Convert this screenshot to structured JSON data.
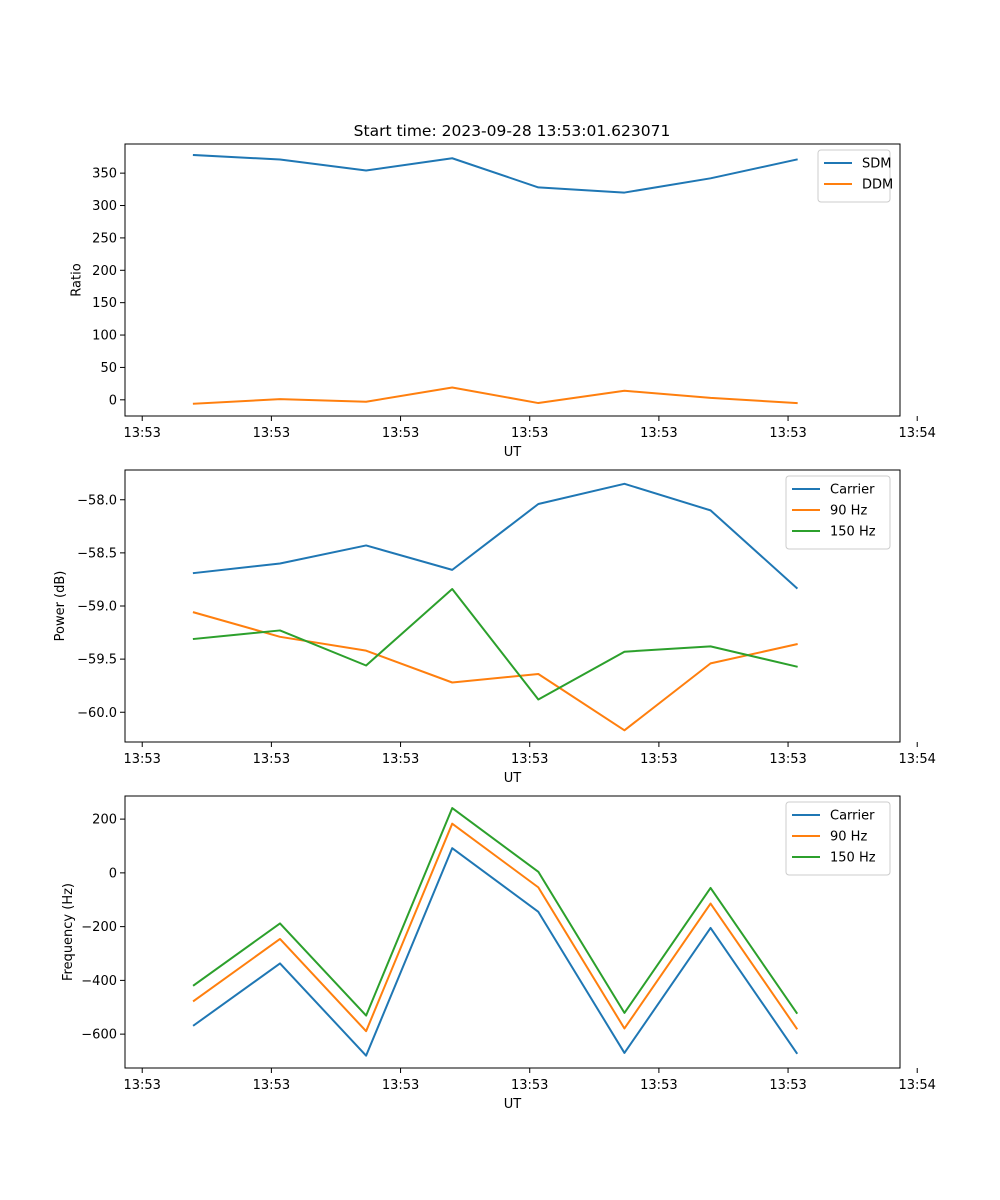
{
  "figure_title": "Start time: 2023-09-28 13:53:01.623071",
  "colors": {
    "blue": "#1f77b4",
    "orange": "#ff7f0e",
    "green": "#2ca02c",
    "axes": "#000000",
    "legend_border": "#cccccc"
  },
  "chart_data": [
    {
      "type": "line",
      "title": "Start time: 2023-09-28 13:53:01.623071",
      "xlabel": "UT",
      "ylabel": "Ratio",
      "x": [
        1,
        2,
        3,
        4,
        5,
        6,
        7,
        8
      ],
      "xlim": [
        0.2,
        9.2
      ],
      "xticks": [
        0.4,
        1.9,
        3.4,
        4.9,
        6.4,
        7.9,
        9.4
      ],
      "xtick_labels": [
        "13:53",
        "13:53",
        "13:53",
        "13:53",
        "13:53",
        "13:53",
        "13:54"
      ],
      "ylim": [
        -25,
        395
      ],
      "yticks": [
        0,
        50,
        100,
        150,
        200,
        250,
        300,
        350
      ],
      "ytick_labels": [
        "0",
        "50",
        "100",
        "150",
        "200",
        "250",
        "300",
        "350"
      ],
      "legend_position": "top-right",
      "series": [
        {
          "name": "SDM",
          "color": "#1f77b4",
          "values": [
            378,
            371,
            354,
            373,
            328,
            320,
            342,
            371
          ]
        },
        {
          "name": "DDM",
          "color": "#ff7f0e",
          "values": [
            -6,
            1,
            -3,
            19,
            -5,
            14,
            3,
            -5
          ]
        }
      ]
    },
    {
      "type": "line",
      "title": "",
      "xlabel": "UT",
      "ylabel": "Power (dB)",
      "x": [
        1,
        2,
        3,
        4,
        5,
        6,
        7,
        8
      ],
      "xlim": [
        0.2,
        9.2
      ],
      "xticks": [
        0.4,
        1.9,
        3.4,
        4.9,
        6.4,
        7.9,
        9.4
      ],
      "xtick_labels": [
        "13:53",
        "13:53",
        "13:53",
        "13:53",
        "13:53",
        "13:53",
        "13:54"
      ],
      "ylim": [
        -60.28,
        -57.72
      ],
      "yticks": [
        -58.0,
        -58.5,
        -59.0,
        -59.5,
        -60.0
      ],
      "ytick_labels": [
        "−58.0",
        "−58.5",
        "−59.0",
        "−59.5",
        "−60.0"
      ],
      "legend_position": "top-right",
      "series": [
        {
          "name": "Carrier",
          "color": "#1f77b4",
          "values": [
            -58.69,
            -58.6,
            -58.43,
            -58.66,
            -58.04,
            -57.85,
            -58.1,
            -58.83
          ]
        },
        {
          "name": "90 Hz",
          "color": "#ff7f0e",
          "values": [
            -59.06,
            -59.29,
            -59.42,
            -59.72,
            -59.64,
            -60.17,
            -59.54,
            -59.36
          ]
        },
        {
          "name": "150 Hz",
          "color": "#2ca02c",
          "values": [
            -59.31,
            -59.23,
            -59.56,
            -58.84,
            -59.88,
            -59.43,
            -59.38,
            -59.57
          ]
        }
      ]
    },
    {
      "type": "line",
      "title": "",
      "xlabel": "UT",
      "ylabel": "Frequency (Hz)",
      "x": [
        1,
        2,
        3,
        4,
        5,
        6,
        7,
        8
      ],
      "xlim": [
        0.2,
        9.2
      ],
      "xticks": [
        0.4,
        1.9,
        3.4,
        4.9,
        6.4,
        7.9,
        9.4
      ],
      "xtick_labels": [
        "13:53",
        "13:53",
        "13:53",
        "13:53",
        "13:53",
        "13:53",
        "13:54"
      ],
      "ylim": [
        -726,
        286
      ],
      "yticks": [
        200,
        0,
        -200,
        -400,
        -600
      ],
      "ytick_labels": [
        "200",
        "0",
        "−200",
        "−400",
        "−600"
      ],
      "legend_position": "top-right",
      "series": [
        {
          "name": "Carrier",
          "color": "#1f77b4",
          "values": [
            -567,
            -337,
            -680,
            92,
            -145,
            -670,
            -205,
            -670
          ]
        },
        {
          "name": "90 Hz",
          "color": "#ff7f0e",
          "values": [
            -476,
            -246,
            -589,
            183,
            -54,
            -579,
            -114,
            -579
          ]
        },
        {
          "name": "150 Hz",
          "color": "#2ca02c",
          "values": [
            -418,
            -188,
            -531,
            241,
            4,
            -521,
            -56,
            -521
          ]
        }
      ]
    }
  ]
}
